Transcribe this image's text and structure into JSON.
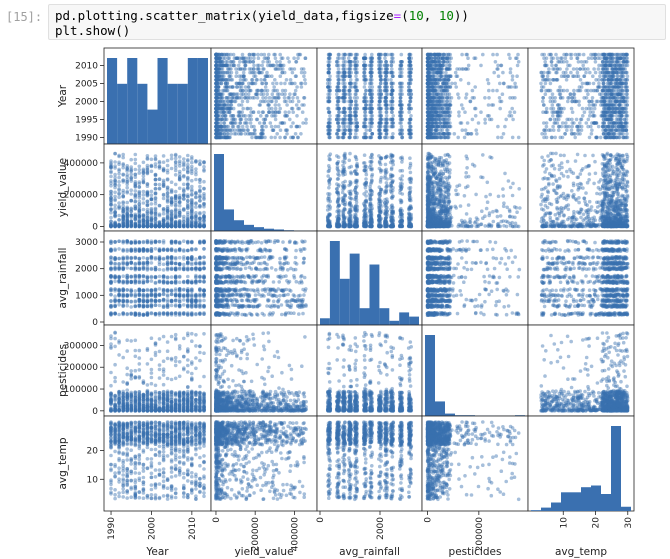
{
  "cell": {
    "prompt": "[15]:",
    "code_line1": {
      "a": "pd.plotting.scatter_matrix(yield_data,figsize",
      "eq": "=",
      "b": "(",
      "n1": "10",
      "c": ", ",
      "n2": "10",
      "d": "))"
    },
    "code_line2": "plt.show()"
  },
  "colors": {
    "point": "#3a70b0",
    "axis": "#222222",
    "code_number": "#008000",
    "code_operator": "#aa22ff"
  },
  "chart_data": {
    "type": "scatter_matrix",
    "variables": [
      "Year",
      "yield_value",
      "avg_rainfall",
      "pesticides",
      "avg_temp"
    ],
    "ranges": {
      "Year": [
        1989,
        2014
      ],
      "yield_value": [
        -10000,
        500000
      ],
      "avg_rainfall": [
        0,
        3300
      ],
      "pesticides": [
        -10000,
        380000
      ],
      "avg_temp": [
        0,
        31
      ]
    },
    "ticks": {
      "Year": {
        "left": [
          "2010",
          "2005",
          "2000",
          "1995",
          "1990"
        ],
        "bottom": [
          "1990",
          "2000",
          "2010"
        ]
      },
      "yield_value": {
        "left": [
          "400000",
          "200000",
          "0"
        ],
        "bottom": [
          "0",
          "200000",
          "400000"
        ]
      },
      "avg_rainfall": {
        "left": [
          "3000",
          "2000",
          "1000",
          "0"
        ],
        "bottom": [
          "0",
          "2000"
        ]
      },
      "pesticides": {
        "left": [
          "300000",
          "200000",
          "100000",
          "0"
        ],
        "bottom": [
          "0",
          "200000"
        ]
      },
      "avg_temp": {
        "left": [
          "20",
          "10"
        ],
        "bottom": [
          "10",
          "20",
          "30"
        ]
      }
    },
    "histograms": {
      "Year": [
        10,
        7,
        10,
        7,
        4,
        10,
        7,
        7,
        10,
        10
      ],
      "yield_value": [
        100,
        28,
        14,
        8,
        5,
        3,
        2,
        1,
        0.5,
        0.3
      ],
      "avg_rainfall": [
        8,
        100,
        55,
        85,
        20,
        72,
        20,
        5,
        15,
        10
      ],
      "pesticides": [
        100,
        18,
        3,
        1,
        1,
        0.5,
        0.5,
        0.3,
        0.3,
        1
      ],
      "avg_temp": [
        1,
        4,
        10,
        22,
        22,
        28,
        30,
        20,
        100,
        5
      ]
    },
    "scatter_counts": [
      1100
    ],
    "title": "",
    "grid": false
  }
}
